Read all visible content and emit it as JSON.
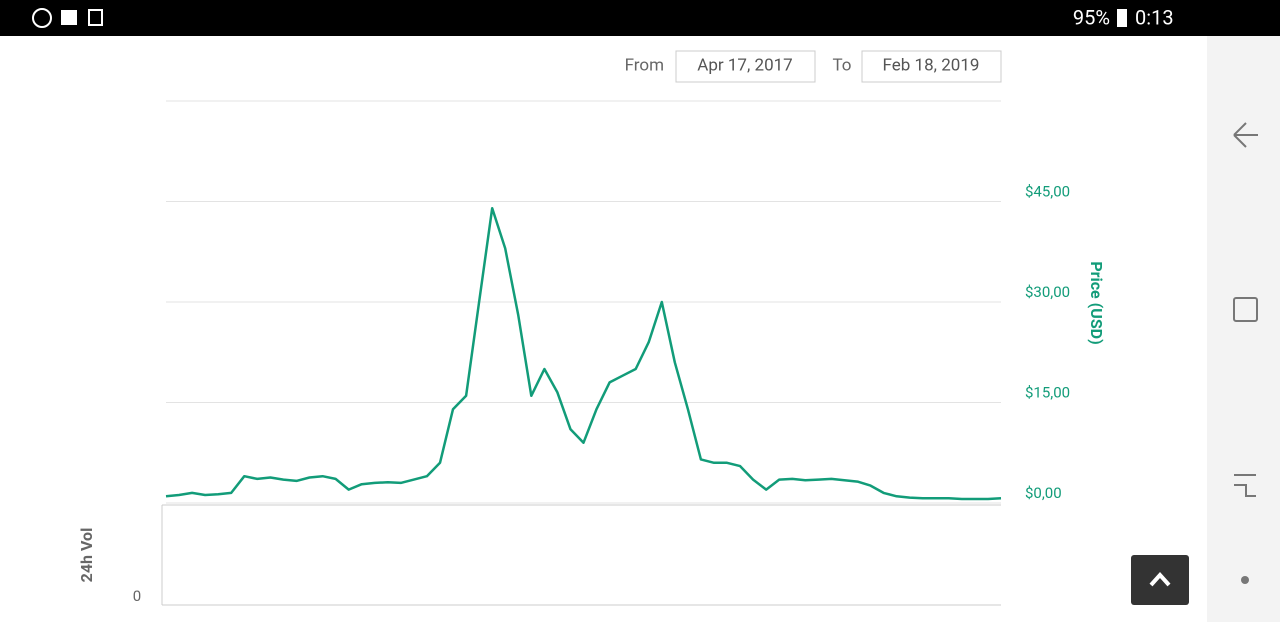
{
  "status_bar": {
    "battery": "95%",
    "time": "0:13"
  },
  "date_range": {
    "from_label": "From",
    "from": "Apr 17, 2017",
    "to_label": "To",
    "to": "Feb 18, 2019"
  },
  "chart_data": {
    "type": "line",
    "y_label": "Price (USD)",
    "color": "#129c79",
    "values": [
      1,
      1.2,
      1.5,
      1.2,
      1.3,
      1.5,
      4,
      3.6,
      3.8,
      3.5,
      3.3,
      3.8,
      4,
      3.6,
      2,
      2.8,
      3,
      3.1,
      3,
      3.5,
      4,
      6,
      14,
      16,
      30,
      44,
      38,
      28,
      16,
      20,
      16.5,
      11,
      9,
      14,
      18,
      19,
      20,
      24,
      30,
      21,
      14,
      6.5,
      6,
      6,
      5.5,
      3.5,
      2,
      3.5,
      3.6,
      3.4,
      3.5,
      3.6,
      3.4,
      3.2,
      2.6,
      1.5,
      1,
      0.8,
      0.7,
      0.7,
      0.7,
      0.6,
      0.6,
      0.6,
      0.7
    ],
    "ylim": [
      0,
      60
    ],
    "yticks": [
      {
        "value": 0,
        "label": "$0,00"
      },
      {
        "value": 15,
        "label": "$15,00"
      },
      {
        "value": 30,
        "label": "$30,00"
      },
      {
        "value": 45,
        "label": "$45,00"
      }
    ],
    "grid": true,
    "volume_label": "24h Vol",
    "volume_yticks": [
      0
    ]
  }
}
